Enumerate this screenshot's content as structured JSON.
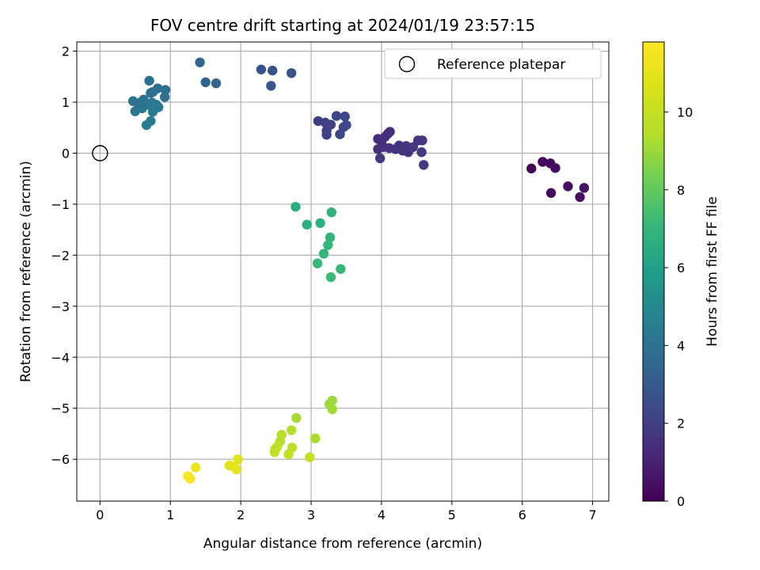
{
  "chart_data": {
    "type": "scatter",
    "title": "FOV centre drift starting at 2024/01/19 23:57:15",
    "xlabel": "Angular distance from reference (arcmin)",
    "ylabel": "Rotation from reference (arcmin)",
    "xlim": [
      -0.33,
      7.23
    ],
    "ylim": [
      -6.82,
      2.18
    ],
    "xticks": [
      0,
      1,
      2,
      3,
      4,
      5,
      6,
      7
    ],
    "yticks": [
      2,
      1,
      0,
      -1,
      -2,
      -3,
      -4,
      -5,
      -6
    ],
    "grid": true,
    "legend": {
      "position": "top-right",
      "entries": [
        "Reference platepar"
      ]
    },
    "reference_point": {
      "x": 0,
      "y": 0
    },
    "colorbar": {
      "label": "Hours from first FF file",
      "colormap": "viridis",
      "range": [
        0,
        11.8
      ],
      "ticks": [
        0,
        2,
        4,
        6,
        8,
        10
      ]
    },
    "points": [
      {
        "x": 6.13,
        "y": -0.3,
        "c": 0.1
      },
      {
        "x": 6.29,
        "y": -0.17,
        "c": 0.2
      },
      {
        "x": 6.4,
        "y": -0.2,
        "c": 0.2
      },
      {
        "x": 6.47,
        "y": -0.29,
        "c": 0.3
      },
      {
        "x": 6.41,
        "y": -0.78,
        "c": 0.3
      },
      {
        "x": 6.65,
        "y": -0.65,
        "c": 0.4
      },
      {
        "x": 6.82,
        "y": -0.86,
        "c": 0.4
      },
      {
        "x": 6.88,
        "y": -0.68,
        "c": 0.5
      },
      {
        "x": 3.95,
        "y": 0.28,
        "c": 1.3
      },
      {
        "x": 4.0,
        "y": 0.24,
        "c": 1.3
      },
      {
        "x": 4.05,
        "y": 0.32,
        "c": 1.4
      },
      {
        "x": 4.12,
        "y": 0.42,
        "c": 1.4
      },
      {
        "x": 4.09,
        "y": 0.38,
        "c": 1.4
      },
      {
        "x": 3.95,
        "y": 0.08,
        "c": 1.4
      },
      {
        "x": 4.03,
        "y": 0.12,
        "c": 1.5
      },
      {
        "x": 4.11,
        "y": 0.1,
        "c": 1.5
      },
      {
        "x": 4.2,
        "y": 0.08,
        "c": 1.5
      },
      {
        "x": 4.25,
        "y": 0.15,
        "c": 1.6
      },
      {
        "x": 4.3,
        "y": 0.05,
        "c": 1.6
      },
      {
        "x": 4.35,
        "y": 0.14,
        "c": 1.6
      },
      {
        "x": 4.38,
        "y": 0.02,
        "c": 1.6
      },
      {
        "x": 4.45,
        "y": 0.12,
        "c": 1.7
      },
      {
        "x": 4.52,
        "y": 0.25,
        "c": 1.7
      },
      {
        "x": 4.58,
        "y": 0.25,
        "c": 1.7
      },
      {
        "x": 4.57,
        "y": 0.02,
        "c": 1.8
      },
      {
        "x": 4.6,
        "y": -0.23,
        "c": 1.8
      },
      {
        "x": 3.98,
        "y": -0.1,
        "c": 1.8
      },
      {
        "x": 4.25,
        "y": 0.1,
        "c": 1.6
      },
      {
        "x": 3.1,
        "y": 0.63,
        "c": 2.0
      },
      {
        "x": 3.2,
        "y": 0.6,
        "c": 2.0
      },
      {
        "x": 3.28,
        "y": 0.56,
        "c": 2.1
      },
      {
        "x": 3.22,
        "y": 0.44,
        "c": 2.1
      },
      {
        "x": 3.22,
        "y": 0.36,
        "c": 2.1
      },
      {
        "x": 3.36,
        "y": 0.73,
        "c": 2.2
      },
      {
        "x": 3.48,
        "y": 0.72,
        "c": 2.2
      },
      {
        "x": 3.46,
        "y": 0.51,
        "c": 2.2
      },
      {
        "x": 3.41,
        "y": 0.37,
        "c": 2.3
      },
      {
        "x": 3.5,
        "y": 0.55,
        "c": 2.3
      },
      {
        "x": 2.29,
        "y": 1.64,
        "c": 2.7
      },
      {
        "x": 2.45,
        "y": 1.62,
        "c": 2.7
      },
      {
        "x": 2.43,
        "y": 1.32,
        "c": 2.8
      },
      {
        "x": 2.72,
        "y": 1.57,
        "c": 2.7
      },
      {
        "x": 1.42,
        "y": 1.78,
        "c": 3.4
      },
      {
        "x": 1.5,
        "y": 1.39,
        "c": 3.4
      },
      {
        "x": 1.65,
        "y": 1.37,
        "c": 3.5
      },
      {
        "x": 0.7,
        "y": 1.42,
        "c": 3.8
      },
      {
        "x": 0.82,
        "y": 1.27,
        "c": 3.8
      },
      {
        "x": 0.93,
        "y": 1.24,
        "c": 3.8
      },
      {
        "x": 0.92,
        "y": 1.1,
        "c": 3.9
      },
      {
        "x": 0.75,
        "y": 1.2,
        "c": 3.9
      },
      {
        "x": 0.72,
        "y": 1.18,
        "c": 3.9
      },
      {
        "x": 0.62,
        "y": 1.05,
        "c": 4.0
      },
      {
        "x": 0.47,
        "y": 1.02,
        "c": 4.1
      },
      {
        "x": 0.55,
        "y": 0.95,
        "c": 4.1
      },
      {
        "x": 0.6,
        "y": 0.88,
        "c": 4.2
      },
      {
        "x": 0.5,
        "y": 0.82,
        "c": 4.2
      },
      {
        "x": 0.68,
        "y": 0.95,
        "c": 4.2
      },
      {
        "x": 0.74,
        "y": 0.99,
        "c": 4.3
      },
      {
        "x": 0.8,
        "y": 0.95,
        "c": 4.3
      },
      {
        "x": 0.83,
        "y": 0.9,
        "c": 4.3
      },
      {
        "x": 0.75,
        "y": 0.81,
        "c": 4.4
      },
      {
        "x": 0.72,
        "y": 0.63,
        "c": 4.4
      },
      {
        "x": 0.66,
        "y": 0.55,
        "c": 4.5
      },
      {
        "x": 0.58,
        "y": 1.0,
        "c": 4.1
      },
      {
        "x": 2.78,
        "y": -1.05,
        "c": 6.6
      },
      {
        "x": 2.94,
        "y": -1.4,
        "c": 6.7
      },
      {
        "x": 3.13,
        "y": -1.37,
        "c": 6.7
      },
      {
        "x": 3.29,
        "y": -1.16,
        "c": 6.8
      },
      {
        "x": 3.27,
        "y": -1.65,
        "c": 6.9
      },
      {
        "x": 3.24,
        "y": -1.8,
        "c": 7.0
      },
      {
        "x": 3.18,
        "y": -1.97,
        "c": 7.0
      },
      {
        "x": 3.09,
        "y": -2.16,
        "c": 7.1
      },
      {
        "x": 3.42,
        "y": -2.27,
        "c": 7.1
      },
      {
        "x": 3.28,
        "y": -2.43,
        "c": 7.2
      },
      {
        "x": 3.3,
        "y": -4.85,
        "c": 9.0
      },
      {
        "x": 3.26,
        "y": -4.92,
        "c": 9.0
      },
      {
        "x": 3.3,
        "y": -5.02,
        "c": 9.1
      },
      {
        "x": 2.79,
        "y": -5.19,
        "c": 9.2
      },
      {
        "x": 3.06,
        "y": -5.59,
        "c": 9.3
      },
      {
        "x": 2.72,
        "y": -5.43,
        "c": 9.4
      },
      {
        "x": 2.58,
        "y": -5.52,
        "c": 9.5
      },
      {
        "x": 2.56,
        "y": -5.65,
        "c": 9.6
      },
      {
        "x": 2.52,
        "y": -5.75,
        "c": 9.7
      },
      {
        "x": 2.49,
        "y": -5.8,
        "c": 9.7
      },
      {
        "x": 2.48,
        "y": -5.86,
        "c": 9.8
      },
      {
        "x": 2.73,
        "y": -5.77,
        "c": 9.8
      },
      {
        "x": 2.68,
        "y": -5.9,
        "c": 9.9
      },
      {
        "x": 2.98,
        "y": -5.96,
        "c": 10.0
      },
      {
        "x": 1.96,
        "y": -6.0,
        "c": 10.8
      },
      {
        "x": 1.84,
        "y": -6.12,
        "c": 10.9
      },
      {
        "x": 1.91,
        "y": -6.15,
        "c": 11.0
      },
      {
        "x": 1.94,
        "y": -6.2,
        "c": 11.1
      },
      {
        "x": 1.36,
        "y": -6.16,
        "c": 11.3
      },
      {
        "x": 1.25,
        "y": -6.33,
        "c": 11.5
      },
      {
        "x": 1.28,
        "y": -6.38,
        "c": 11.6
      }
    ]
  }
}
